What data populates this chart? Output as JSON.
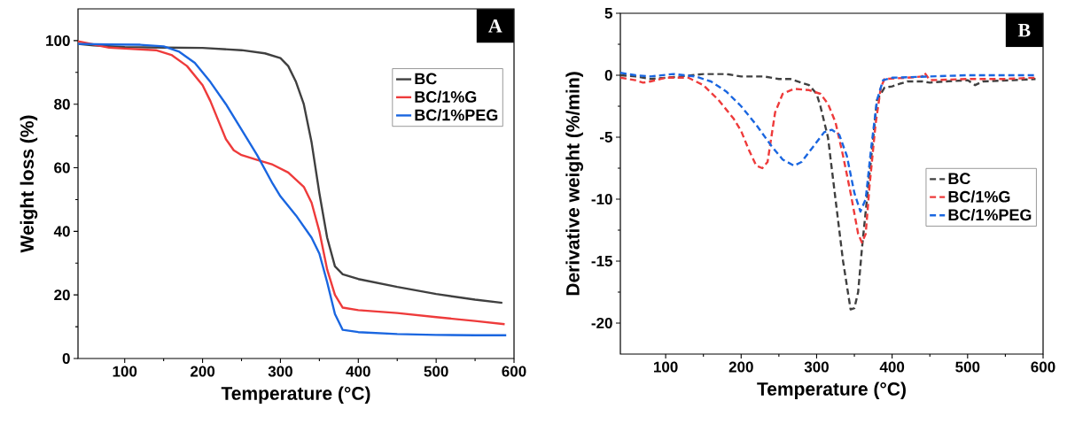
{
  "chart_data": [
    {
      "type": "line",
      "xlabel": "Temperature (°C)",
      "ylabel": "Weight loss (%)",
      "xlim": [
        40,
        600
      ],
      "ylim": [
        0,
        110
      ],
      "xticks": [
        100,
        200,
        300,
        400,
        500,
        600
      ],
      "yticks": [
        0,
        20,
        40,
        60,
        80,
        100
      ],
      "legend": "top right",
      "line_style": "solid",
      "annotations": [
        "A"
      ],
      "series": [
        {
          "name": "BC",
          "color": "#404040",
          "x": [
            40,
            60,
            100,
            150,
            200,
            250,
            280,
            300,
            310,
            320,
            330,
            340,
            350,
            360,
            370,
            380,
            400,
            450,
            500,
            550,
            585
          ],
          "values": [
            99,
            98.5,
            98,
            97.8,
            97.7,
            97,
            96,
            94.5,
            92,
            87,
            80,
            68,
            52,
            38,
            29,
            26.5,
            25,
            22.5,
            20.3,
            18.5,
            17.5
          ]
        },
        {
          "name": "BC/1%G",
          "color": "#ee3b3b",
          "x": [
            40,
            60,
            80,
            100,
            140,
            160,
            180,
            200,
            210,
            220,
            230,
            240,
            250,
            270,
            290,
            310,
            330,
            340,
            350,
            360,
            370,
            380,
            400,
            450,
            500,
            550,
            588
          ],
          "values": [
            99.8,
            98.8,
            97.8,
            97.5,
            97,
            95.5,
            92,
            86,
            81,
            75,
            69,
            65.5,
            64,
            62.5,
            61,
            58.5,
            54,
            49,
            40,
            28,
            20,
            16,
            15.2,
            14.3,
            13,
            11.8,
            10.8
          ]
        },
        {
          "name": "BC/1%PEG",
          "color": "#1a66e0",
          "x": [
            40,
            80,
            120,
            150,
            170,
            190,
            210,
            230,
            250,
            270,
            290,
            300,
            320,
            340,
            350,
            360,
            370,
            380,
            400,
            450,
            500,
            550,
            590
          ],
          "values": [
            99,
            98.8,
            98.7,
            98.2,
            96.5,
            93,
            87,
            80,
            72,
            64,
            55,
            51,
            45,
            38,
            33,
            24,
            14,
            9,
            8.3,
            7.7,
            7.4,
            7.3,
            7.3
          ]
        }
      ]
    },
    {
      "type": "line",
      "xlabel": "Temperature (°C)",
      "ylabel": "Derivative weight (%/min)",
      "xlim": [
        40,
        600
      ],
      "ylim": [
        -22.5,
        5
      ],
      "xticks": [
        100,
        200,
        300,
        400,
        500,
        600
      ],
      "yticks": [
        -20,
        -15,
        -10,
        -5,
        0,
        5
      ],
      "legend": "right",
      "line_style": "dashed",
      "annotations": [
        "B"
      ],
      "series": [
        {
          "name": "BC",
          "color": "#404040",
          "x": [
            40,
            60,
            80,
            100,
            120,
            150,
            180,
            200,
            230,
            250,
            265,
            280,
            290,
            300,
            305,
            315,
            325,
            335,
            345,
            350,
            355,
            360,
            370,
            380,
            390,
            400,
            420,
            440,
            450,
            470,
            500,
            510,
            520,
            560,
            590
          ],
          "values": [
            0,
            -0.1,
            -0.3,
            -0.2,
            -0.1,
            0.1,
            0.1,
            -0.1,
            -0.1,
            -0.3,
            -0.3,
            -0.6,
            -0.8,
            -1.5,
            -2.5,
            -5,
            -10,
            -15,
            -18.9,
            -18.8,
            -17.5,
            -14,
            -8,
            -2,
            -1,
            -0.9,
            -0.5,
            -0.5,
            -0.6,
            -0.5,
            -0.4,
            -0.8,
            -0.5,
            -0.4,
            -0.3
          ]
        },
        {
          "name": "BC/1%G",
          "color": "#ee3b3b",
          "x": [
            40,
            60,
            70,
            80,
            100,
            130,
            150,
            170,
            190,
            200,
            210,
            220,
            228,
            235,
            240,
            245,
            255,
            270,
            290,
            305,
            315,
            325,
            335,
            345,
            355,
            360,
            365,
            370,
            378,
            385,
            390,
            420,
            440,
            443,
            450,
            500,
            550,
            590
          ],
          "values": [
            -0.2,
            -0.4,
            -0.6,
            -0.5,
            -0.2,
            -0.2,
            -0.8,
            -2,
            -3.5,
            -4.5,
            -6,
            -7.3,
            -7.5,
            -7,
            -5,
            -3,
            -1.5,
            -1.1,
            -1.2,
            -1.5,
            -2.3,
            -3.8,
            -6.5,
            -9.5,
            -12.8,
            -13.5,
            -12.8,
            -9,
            -4,
            -1,
            -0.3,
            -0.2,
            -0.1,
            0.2,
            -0.4,
            -0.3,
            -0.3,
            -0.2
          ]
        },
        {
          "name": "BC/1%PEG",
          "color": "#1a66e0",
          "x": [
            40,
            60,
            80,
            110,
            140,
            160,
            180,
            200,
            220,
            240,
            255,
            270,
            280,
            295,
            310,
            320,
            330,
            340,
            350,
            358,
            365,
            372,
            380,
            388,
            400,
            450,
            500,
            590
          ],
          "values": [
            0.2,
            0,
            -0.1,
            0.1,
            -0.1,
            -0.5,
            -1.3,
            -2.5,
            -4,
            -5.7,
            -6.8,
            -7.3,
            -7,
            -5.8,
            -4.6,
            -4.4,
            -4.8,
            -6.5,
            -9.5,
            -11,
            -10,
            -6,
            -2,
            -0.4,
            -0.2,
            -0.1,
            0,
            0
          ]
        }
      ]
    }
  ]
}
